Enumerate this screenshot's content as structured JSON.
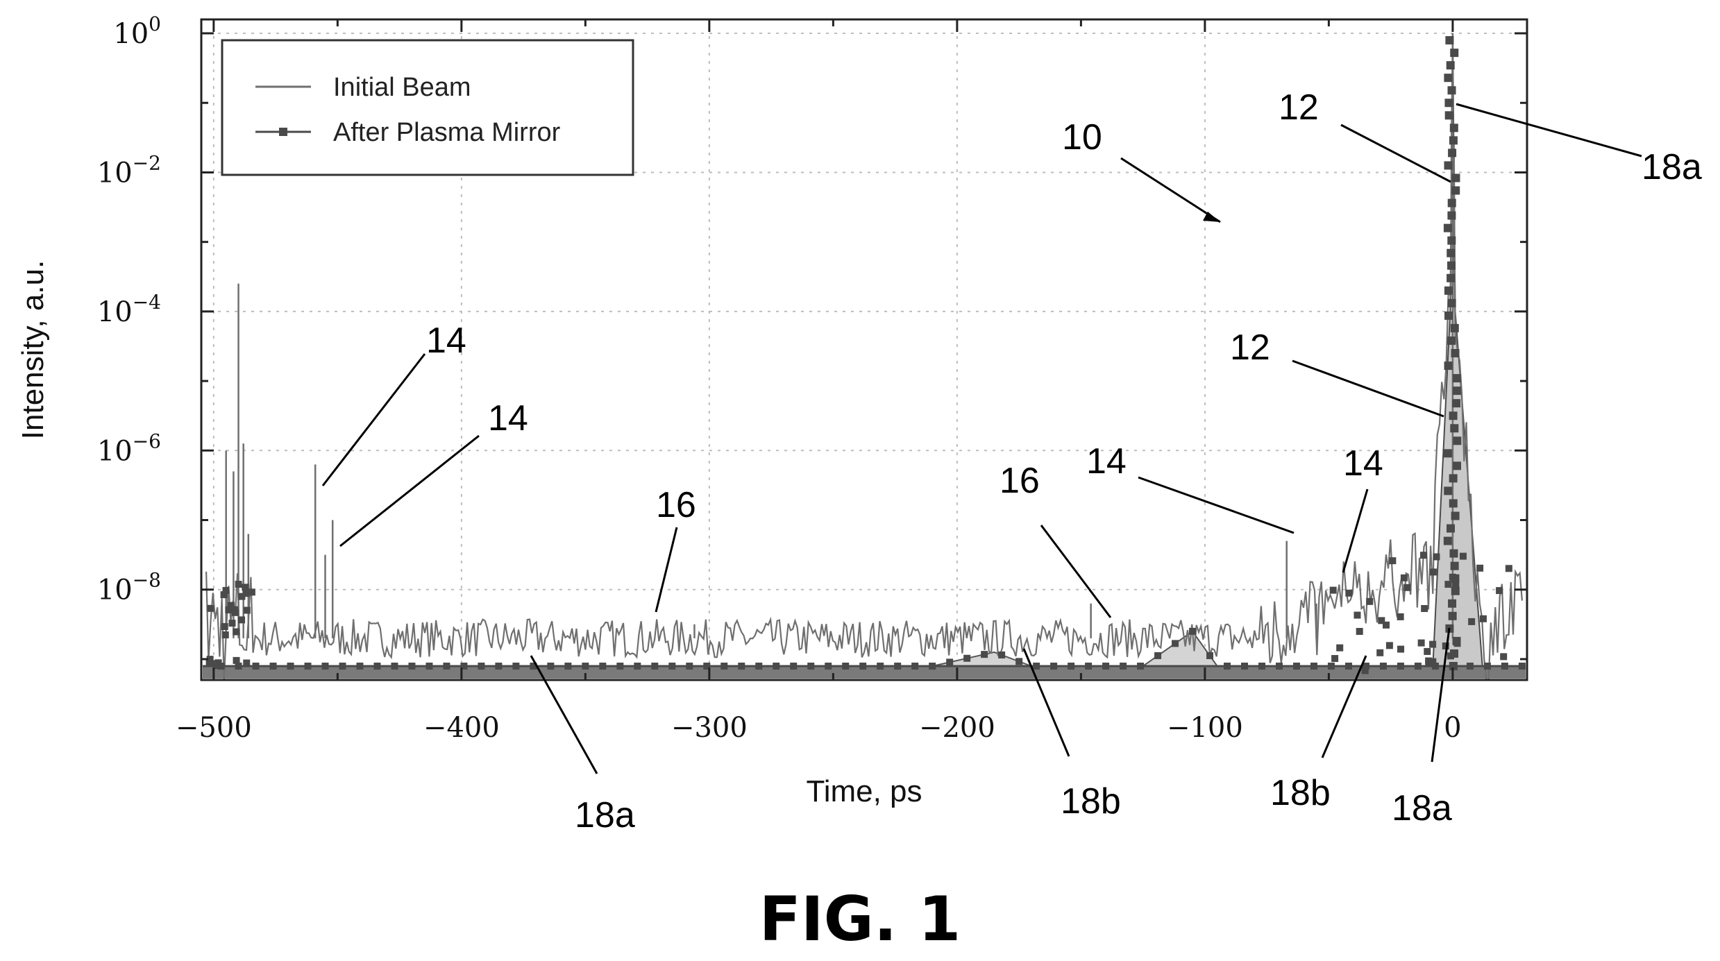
{
  "figure": {
    "caption": "FIG. 1"
  },
  "chart_data": {
    "type": "line",
    "xlabel": "Time, ps",
    "ylabel": "Intensity, a.u.",
    "xlim": [
      -505,
      30
    ],
    "ylim_exponent": [
      -9.3,
      0.2
    ],
    "y_scale": "log",
    "grid": true,
    "legend_placement": "top-left",
    "x_ticks": [
      {
        "value": -500,
        "label": "−500"
      },
      {
        "value": -400,
        "label": "−400"
      },
      {
        "value": -300,
        "label": "−300"
      },
      {
        "value": -200,
        "label": "−200"
      },
      {
        "value": -100,
        "label": "−100"
      },
      {
        "value": 0,
        "label": "0"
      }
    ],
    "y_ticks": [
      {
        "exp": 0,
        "base": "10",
        "sup": "0"
      },
      {
        "exp": -2,
        "base": "10",
        "sup": "−2"
      },
      {
        "exp": -4,
        "base": "10",
        "sup": "−4"
      },
      {
        "exp": -6,
        "base": "10",
        "sup": "−6"
      },
      {
        "exp": -8,
        "base": "10",
        "sup": "−8"
      }
    ],
    "series": [
      {
        "name": "Initial Beam",
        "color": "#6f6f6f",
        "baseline_exponent": -8.7,
        "spikes": [
          {
            "x": -495,
            "exp": -6.0
          },
          {
            "x": -492,
            "exp": -6.3
          },
          {
            "x": -490,
            "exp": -3.6
          },
          {
            "x": -488,
            "exp": -5.9
          },
          {
            "x": -486,
            "exp": -7.2
          },
          {
            "x": -459,
            "exp": -6.2
          },
          {
            "x": -455,
            "exp": -7.5
          },
          {
            "x": -452,
            "exp": -7.0
          },
          {
            "x": -306,
            "exp": -8.5
          },
          {
            "x": -146,
            "exp": -8.2
          },
          {
            "x": -67,
            "exp": -7.3
          },
          {
            "x": -55,
            "exp": -8.2
          },
          {
            "x": 0,
            "exp": 0.0
          }
        ]
      },
      {
        "name": "After Plasma Mirror",
        "color": "#4a4a4a",
        "floor_exponent": -9.1,
        "bumps": [
          {
            "x": [
              -210,
              -185,
              -170
            ],
            "exp": [
              -9.1,
              -8.9,
              -9.1
            ]
          },
          {
            "x": [
              -125,
              -105,
              -95
            ],
            "exp": [
              -9.1,
              -8.6,
              -9.1
            ]
          }
        ],
        "peak_x": 0,
        "peak_exp": 0.0
      }
    ]
  },
  "annotations": [
    {
      "id": "10",
      "text": "10"
    },
    {
      "id": "12-top",
      "text": "12"
    },
    {
      "id": "12-mid",
      "text": "12"
    },
    {
      "id": "14-a",
      "text": "14"
    },
    {
      "id": "14-b",
      "text": "14"
    },
    {
      "id": "14-c",
      "text": "14"
    },
    {
      "id": "14-d",
      "text": "14"
    },
    {
      "id": "16-a",
      "text": "16"
    },
    {
      "id": "16-b",
      "text": "16"
    },
    {
      "id": "18a-top",
      "text": "18a"
    },
    {
      "id": "18a-bottom-left",
      "text": "18a"
    },
    {
      "id": "18a-bottom-right",
      "text": "18a"
    },
    {
      "id": "18b-left",
      "text": "18b"
    },
    {
      "id": "18b-right",
      "text": "18b"
    }
  ]
}
